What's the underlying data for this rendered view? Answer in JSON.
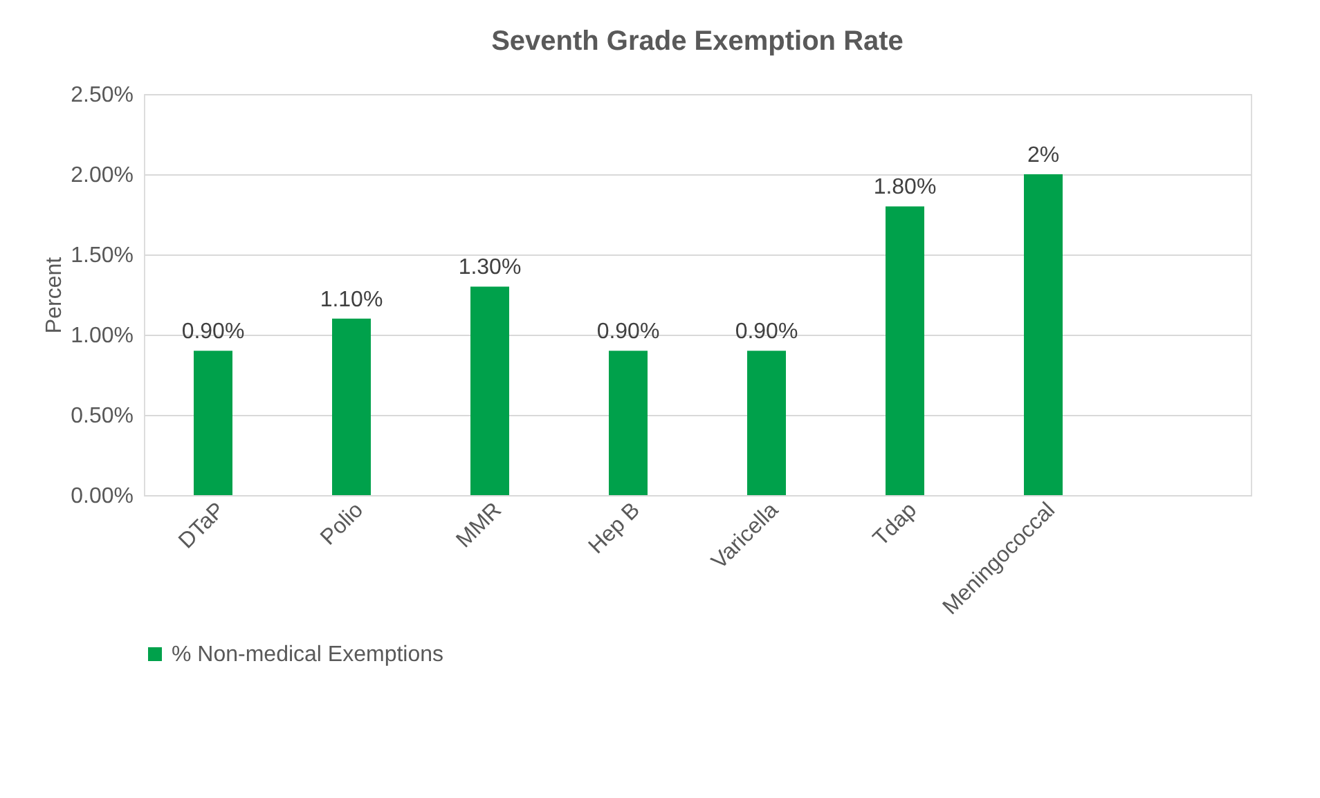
{
  "chart_data": {
    "type": "bar",
    "title": "Seventh Grade Exemption Rate",
    "ylabel": "Percent",
    "categories": [
      "DTaP",
      "Polio",
      "MMR",
      "Hep B",
      "Varicella",
      "Tdap",
      "Meningococcal",
      null
    ],
    "series": [
      {
        "name": "% Non-medical Exemptions",
        "color": "#00a14b",
        "values": [
          0.9,
          1.1,
          1.3,
          0.9,
          0.9,
          1.8,
          2,
          null
        ],
        "value_labels": [
          "0.90%",
          "1.10%",
          "1.30%",
          "0.90%",
          "0.90%",
          "1.80%",
          "2%",
          null
        ]
      }
    ],
    "ylim": [
      0,
      2.5
    ],
    "yticks": [
      {
        "value": 0,
        "label": "0.00%"
      },
      {
        "value": 0.5,
        "label": "0.50%"
      },
      {
        "value": 1,
        "label": "1.00%"
      },
      {
        "value": 1.5,
        "label": "1.50%"
      },
      {
        "value": 2,
        "label": "2.00%"
      },
      {
        "value": 2.5,
        "label": "2.50%"
      }
    ],
    "grid": "y",
    "legend": "bottom"
  }
}
